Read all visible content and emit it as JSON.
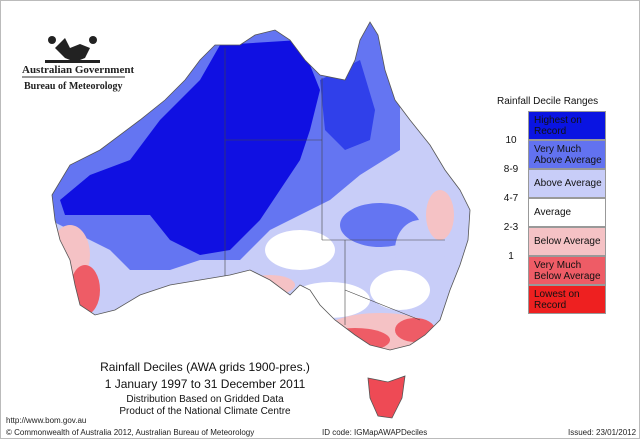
{
  "header": {
    "agency": "Australian Government",
    "bureau": "Bureau of Meteorology"
  },
  "legend": {
    "title": "Rainfall Decile Ranges",
    "items": [
      {
        "label": "Highest on Record",
        "color": "#0a14e2"
      },
      {
        "decile": "10",
        "label": "Very Much Above Average",
        "color": "#6272f0"
      },
      {
        "decile": "8-9",
        "label": "Above Average",
        "color": "#c8cdf8"
      },
      {
        "decile": "4-7",
        "label": "Average",
        "color": "#ffffff"
      },
      {
        "decile": "2-3",
        "label": "Below Average",
        "color": "#f5c2c5"
      },
      {
        "decile": "1",
        "label": "Very Much Below Average",
        "color": "#ee5c66"
      },
      {
        "label": "Lowest on Record",
        "color": "#ee2020"
      }
    ]
  },
  "caption": {
    "title": "Rainfall Deciles (AWA grids 1900-pres.)",
    "period": "1 January 1997 to 31 December 2011",
    "note": "Distribution Based on Gridded Data",
    "product": "Product of the National Climate Centre"
  },
  "url": "http://www.bom.gov.au",
  "footer": {
    "copyright": "© Commonwealth of Australia 2012, Australian Bureau of Meteorology",
    "id": "ID code: IGMapAWAPDeciles",
    "issued": "Issued: 23/01/2012"
  }
}
